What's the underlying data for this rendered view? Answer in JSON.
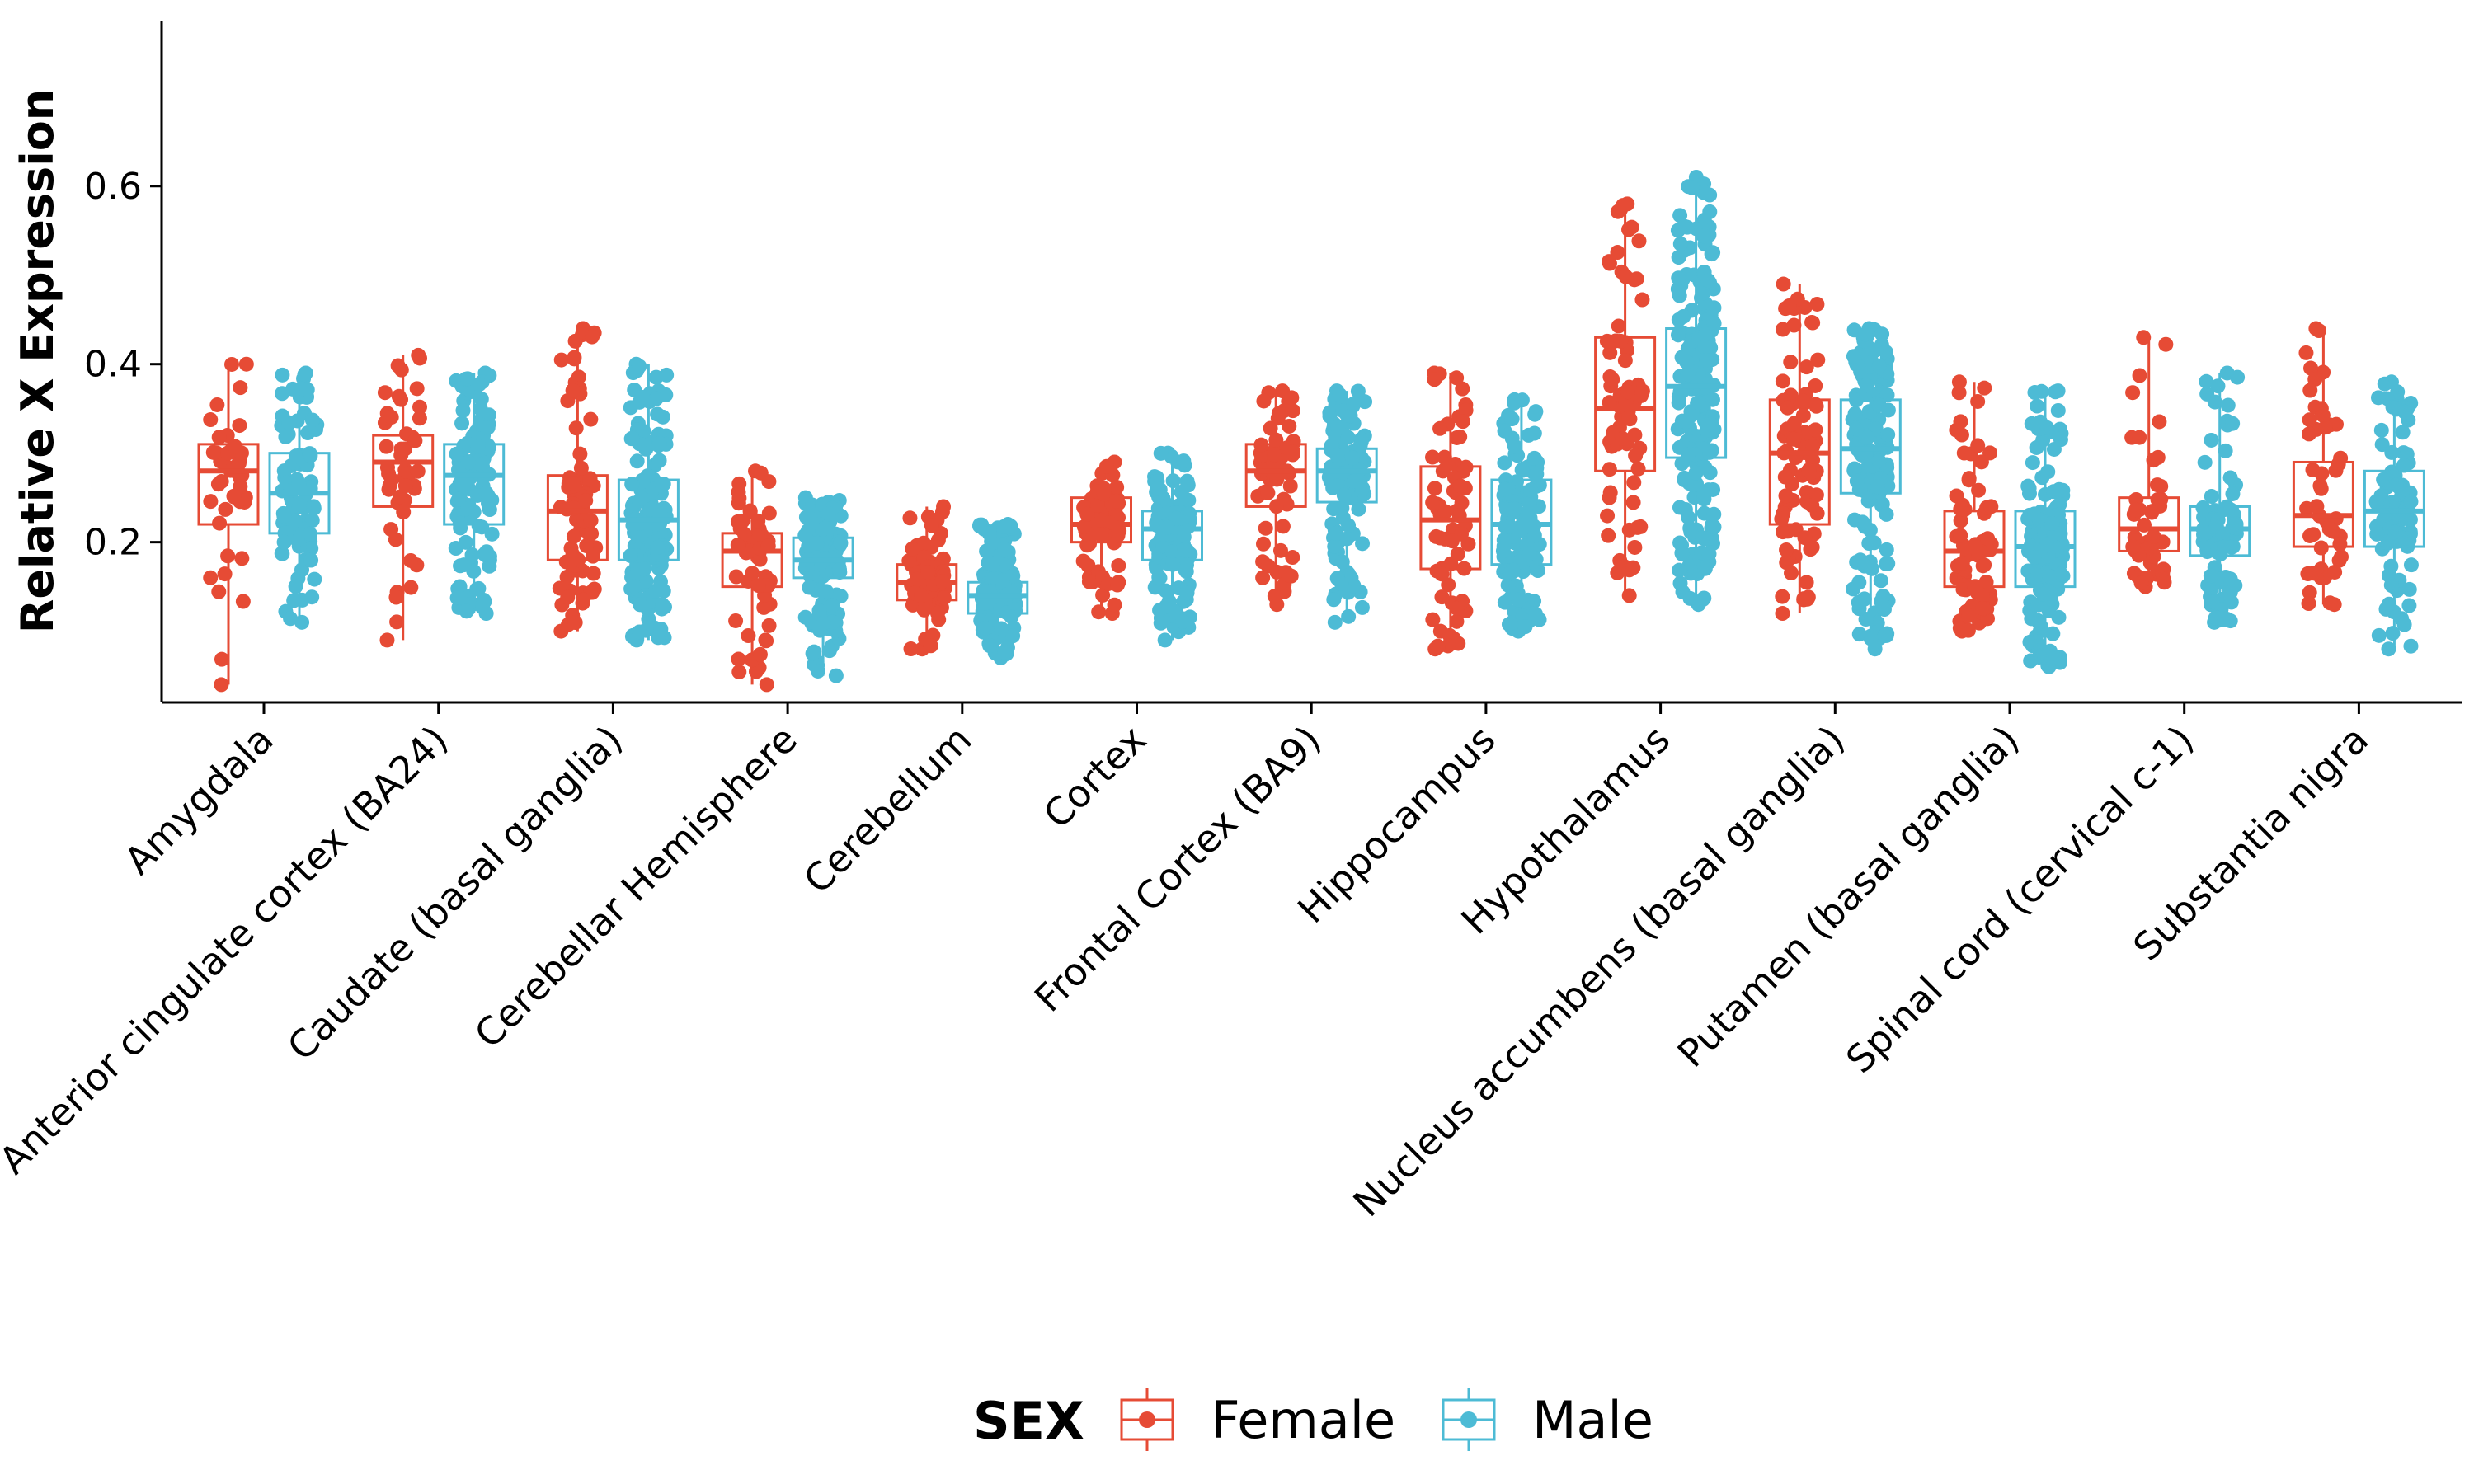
{
  "chart_data": {
    "type": "box",
    "ylabel": "Relative X Expression",
    "xlabel": "",
    "ylim": [
      0.02,
      0.785
    ],
    "yticks": [
      "0.2",
      "0.4",
      "0.6"
    ],
    "grid": false,
    "legend_position": "bottom",
    "legend_title": "SEX",
    "colors": {
      "Female": "#E64B35",
      "Male": "#4DBBD5"
    },
    "categories": [
      "Amygdala",
      "Anterior cingulate cortex (BA24)",
      "Caudate (basal ganglia)",
      "Cerebellar Hemisphere",
      "Cerebellum",
      "Cortex",
      "Frontal Cortex (BA9)",
      "Hippocampus",
      "Hypothalamus",
      "Nucleus accumbens (basal ganglia)",
      "Putamen (basal ganglia)",
      "Spinal cord (cervical c-1)",
      "Substantia nigra"
    ],
    "series": [
      {
        "name": "Female",
        "color": "#E64B35",
        "n": [
          45,
          45,
          75,
          55,
          60,
          65,
          65,
          65,
          70,
          80,
          70,
          50,
          50
        ],
        "whislo": [
          0.04,
          0.09,
          0.1,
          0.04,
          0.08,
          0.12,
          0.13,
          0.08,
          0.14,
          0.12,
          0.1,
          0.15,
          0.13
        ],
        "q1": [
          0.22,
          0.24,
          0.18,
          0.15,
          0.135,
          0.2,
          0.24,
          0.17,
          0.28,
          0.22,
          0.15,
          0.19,
          0.195
        ],
        "median": [
          0.28,
          0.29,
          0.235,
          0.19,
          0.155,
          0.22,
          0.28,
          0.225,
          0.35,
          0.3,
          0.19,
          0.215,
          0.23
        ],
        "q3": [
          0.31,
          0.32,
          0.275,
          0.21,
          0.175,
          0.25,
          0.31,
          0.285,
          0.43,
          0.36,
          0.235,
          0.25,
          0.29
        ],
        "whishi": [
          0.4,
          0.41,
          0.44,
          0.28,
          0.24,
          0.29,
          0.37,
          0.39,
          0.58,
          0.49,
          0.38,
          0.43,
          0.44
        ]
      },
      {
        "name": "Male",
        "color": "#4DBBD5",
        "n": [
          90,
          120,
          150,
          140,
          130,
          130,
          115,
          120,
          200,
          160,
          150,
          100,
          95
        ],
        "whislo": [
          0.11,
          0.12,
          0.09,
          0.05,
          0.07,
          0.09,
          0.11,
          0.1,
          0.13,
          0.08,
          0.06,
          0.11,
          0.08
        ],
        "q1": [
          0.21,
          0.22,
          0.18,
          0.16,
          0.12,
          0.18,
          0.245,
          0.175,
          0.295,
          0.255,
          0.15,
          0.185,
          0.195
        ],
        "median": [
          0.255,
          0.275,
          0.225,
          0.18,
          0.14,
          0.215,
          0.28,
          0.22,
          0.375,
          0.305,
          0.195,
          0.215,
          0.235
        ],
        "q3": [
          0.3,
          0.31,
          0.27,
          0.205,
          0.155,
          0.235,
          0.305,
          0.27,
          0.44,
          0.36,
          0.235,
          0.24,
          0.28
        ],
        "whishi": [
          0.39,
          0.39,
          0.4,
          0.25,
          0.22,
          0.3,
          0.37,
          0.36,
          0.61,
          0.44,
          0.37,
          0.39,
          0.38
        ]
      }
    ]
  }
}
